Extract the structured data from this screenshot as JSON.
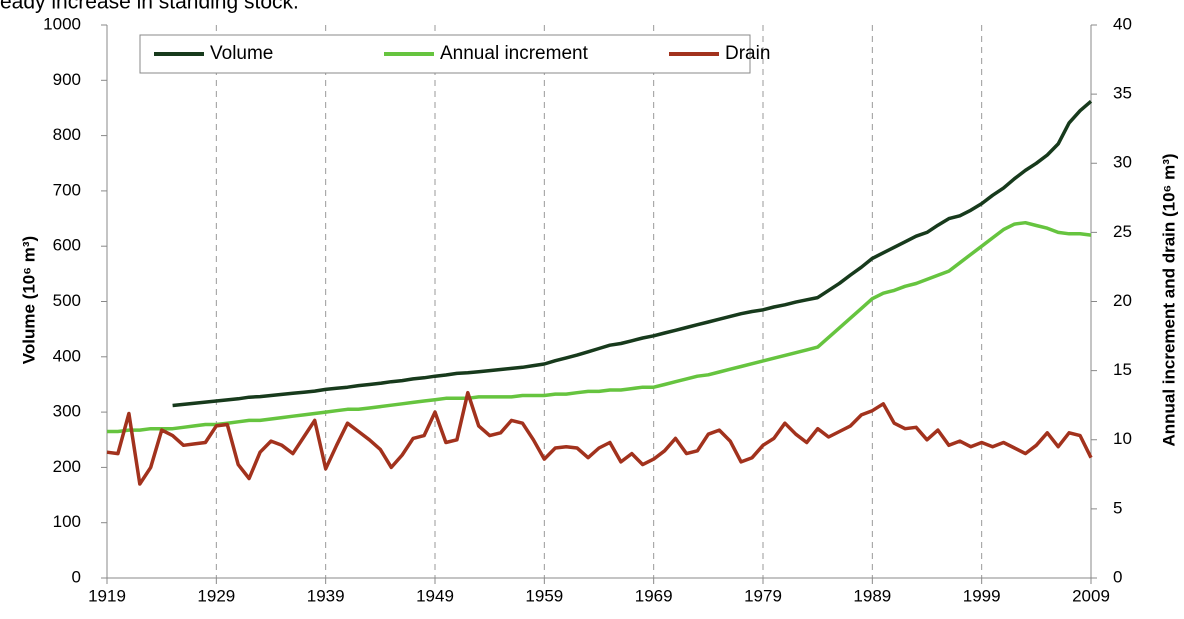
{
  "heading": "eady increase in standing stock.",
  "chart_data": {
    "type": "line",
    "ylabel": "Volume (10⁶ m³)",
    "y2label": "Annual increment and drain (10⁶ m³)",
    "x": [
      1919,
      1920,
      1921,
      1922,
      1923,
      1924,
      1925,
      1926,
      1927,
      1928,
      1929,
      1930,
      1931,
      1932,
      1933,
      1934,
      1935,
      1936,
      1937,
      1938,
      1939,
      1940,
      1941,
      1942,
      1943,
      1944,
      1945,
      1946,
      1947,
      1948,
      1949,
      1950,
      1951,
      1952,
      1953,
      1954,
      1955,
      1956,
      1957,
      1958,
      1959,
      1960,
      1961,
      1962,
      1963,
      1964,
      1965,
      1966,
      1967,
      1968,
      1969,
      1970,
      1971,
      1972,
      1973,
      1974,
      1975,
      1976,
      1977,
      1978,
      1979,
      1980,
      1981,
      1982,
      1983,
      1984,
      1985,
      1986,
      1987,
      1988,
      1989,
      1990,
      1991,
      1992,
      1993,
      1994,
      1995,
      1996,
      1997,
      1998,
      1999,
      2000,
      2001,
      2002,
      2003,
      2004,
      2005,
      2006,
      2007,
      2008,
      2009
    ],
    "xlim": [
      1919,
      2009
    ],
    "xticks": [
      1919,
      1929,
      1939,
      1949,
      1959,
      1969,
      1979,
      1989,
      1999,
      2009
    ],
    "ylim": [
      0,
      1000
    ],
    "yticks": [
      0,
      100,
      200,
      300,
      400,
      500,
      600,
      700,
      800,
      900,
      1000
    ],
    "y2lim": [
      0,
      40
    ],
    "y2ticks": [
      0,
      5,
      10,
      15,
      20,
      25,
      30,
      35,
      40
    ],
    "grid": "x",
    "legend": "top-left",
    "series": [
      {
        "name": "Volume",
        "color": "#173a1c",
        "values": [
          null,
          null,
          null,
          null,
          null,
          null,
          312,
          314,
          316,
          318,
          320,
          322,
          324,
          327,
          328,
          330,
          332,
          334,
          336,
          338,
          341,
          343,
          345,
          348,
          350,
          352,
          355,
          357,
          360,
          362,
          365,
          367,
          370,
          371,
          373,
          375,
          377,
          379,
          381,
          384,
          387,
          393,
          398,
          403,
          409,
          415,
          421,
          424,
          429,
          434,
          438,
          443,
          448,
          453,
          458,
          463,
          468,
          473,
          478,
          482,
          485,
          490,
          494,
          499,
          503,
          507,
          520,
          533,
          548,
          562,
          578,
          588,
          598,
          608,
          618,
          625,
          638,
          650,
          655,
          665,
          677,
          692,
          705,
          722,
          737,
          750,
          765,
          785,
          823,
          845,
          862
        ]
      },
      {
        "name": "Annual increment",
        "color": "#66c43f",
        "axis": "y2",
        "values": [
          10.6,
          10.6,
          10.7,
          10.7,
          10.8,
          10.8,
          10.8,
          10.9,
          11.0,
          11.1,
          11.1,
          11.2,
          11.3,
          11.4,
          11.4,
          11.5,
          11.6,
          11.7,
          11.8,
          11.9,
          12.0,
          12.1,
          12.2,
          12.2,
          12.3,
          12.4,
          12.5,
          12.6,
          12.7,
          12.8,
          12.9,
          13.0,
          13.0,
          13.0,
          13.1,
          13.1,
          13.1,
          13.1,
          13.2,
          13.2,
          13.2,
          13.3,
          13.3,
          13.4,
          13.5,
          13.5,
          13.6,
          13.6,
          13.7,
          13.8,
          13.8,
          14.0,
          14.2,
          14.4,
          14.6,
          14.7,
          14.9,
          15.1,
          15.3,
          15.5,
          15.7,
          15.9,
          16.1,
          16.3,
          16.5,
          16.7,
          17.4,
          18.1,
          18.8,
          19.5,
          20.2,
          20.6,
          20.8,
          21.1,
          21.3,
          21.6,
          21.9,
          22.2,
          22.8,
          23.4,
          24.0,
          24.6,
          25.2,
          25.6,
          25.7,
          25.5,
          25.3,
          25.0,
          24.9,
          24.9,
          24.8
        ]
      },
      {
        "name": "Drain",
        "color": "#a2321d",
        "axis": "y2",
        "values": [
          9.1,
          9.0,
          11.9,
          6.8,
          8.0,
          10.7,
          10.3,
          9.6,
          9.7,
          9.8,
          11.0,
          11.1,
          8.2,
          7.2,
          9.1,
          9.9,
          9.6,
          9.0,
          10.2,
          11.4,
          7.9,
          9.6,
          11.2,
          10.6,
          10.0,
          9.3,
          8.0,
          8.9,
          10.1,
          10.3,
          12.0,
          9.8,
          10.0,
          13.4,
          11.0,
          10.3,
          10.5,
          11.4,
          11.2,
          10.0,
          8.6,
          9.4,
          9.5,
          9.4,
          8.7,
          9.4,
          9.8,
          8.4,
          9.0,
          8.2,
          8.6,
          9.2,
          10.1,
          9.0,
          9.2,
          10.4,
          10.7,
          9.9,
          8.4,
          8.7,
          9.6,
          10.1,
          11.2,
          10.4,
          9.8,
          10.8,
          10.2,
          10.6,
          11.0,
          11.8,
          12.1,
          12.6,
          11.2,
          10.8,
          10.9,
          10.0,
          10.7,
          9.6,
          9.9,
          9.5,
          9.8,
          9.5,
          9.8,
          9.4,
          9.0,
          9.6,
          10.5,
          9.5,
          10.5,
          10.3,
          8.7
        ]
      }
    ]
  }
}
